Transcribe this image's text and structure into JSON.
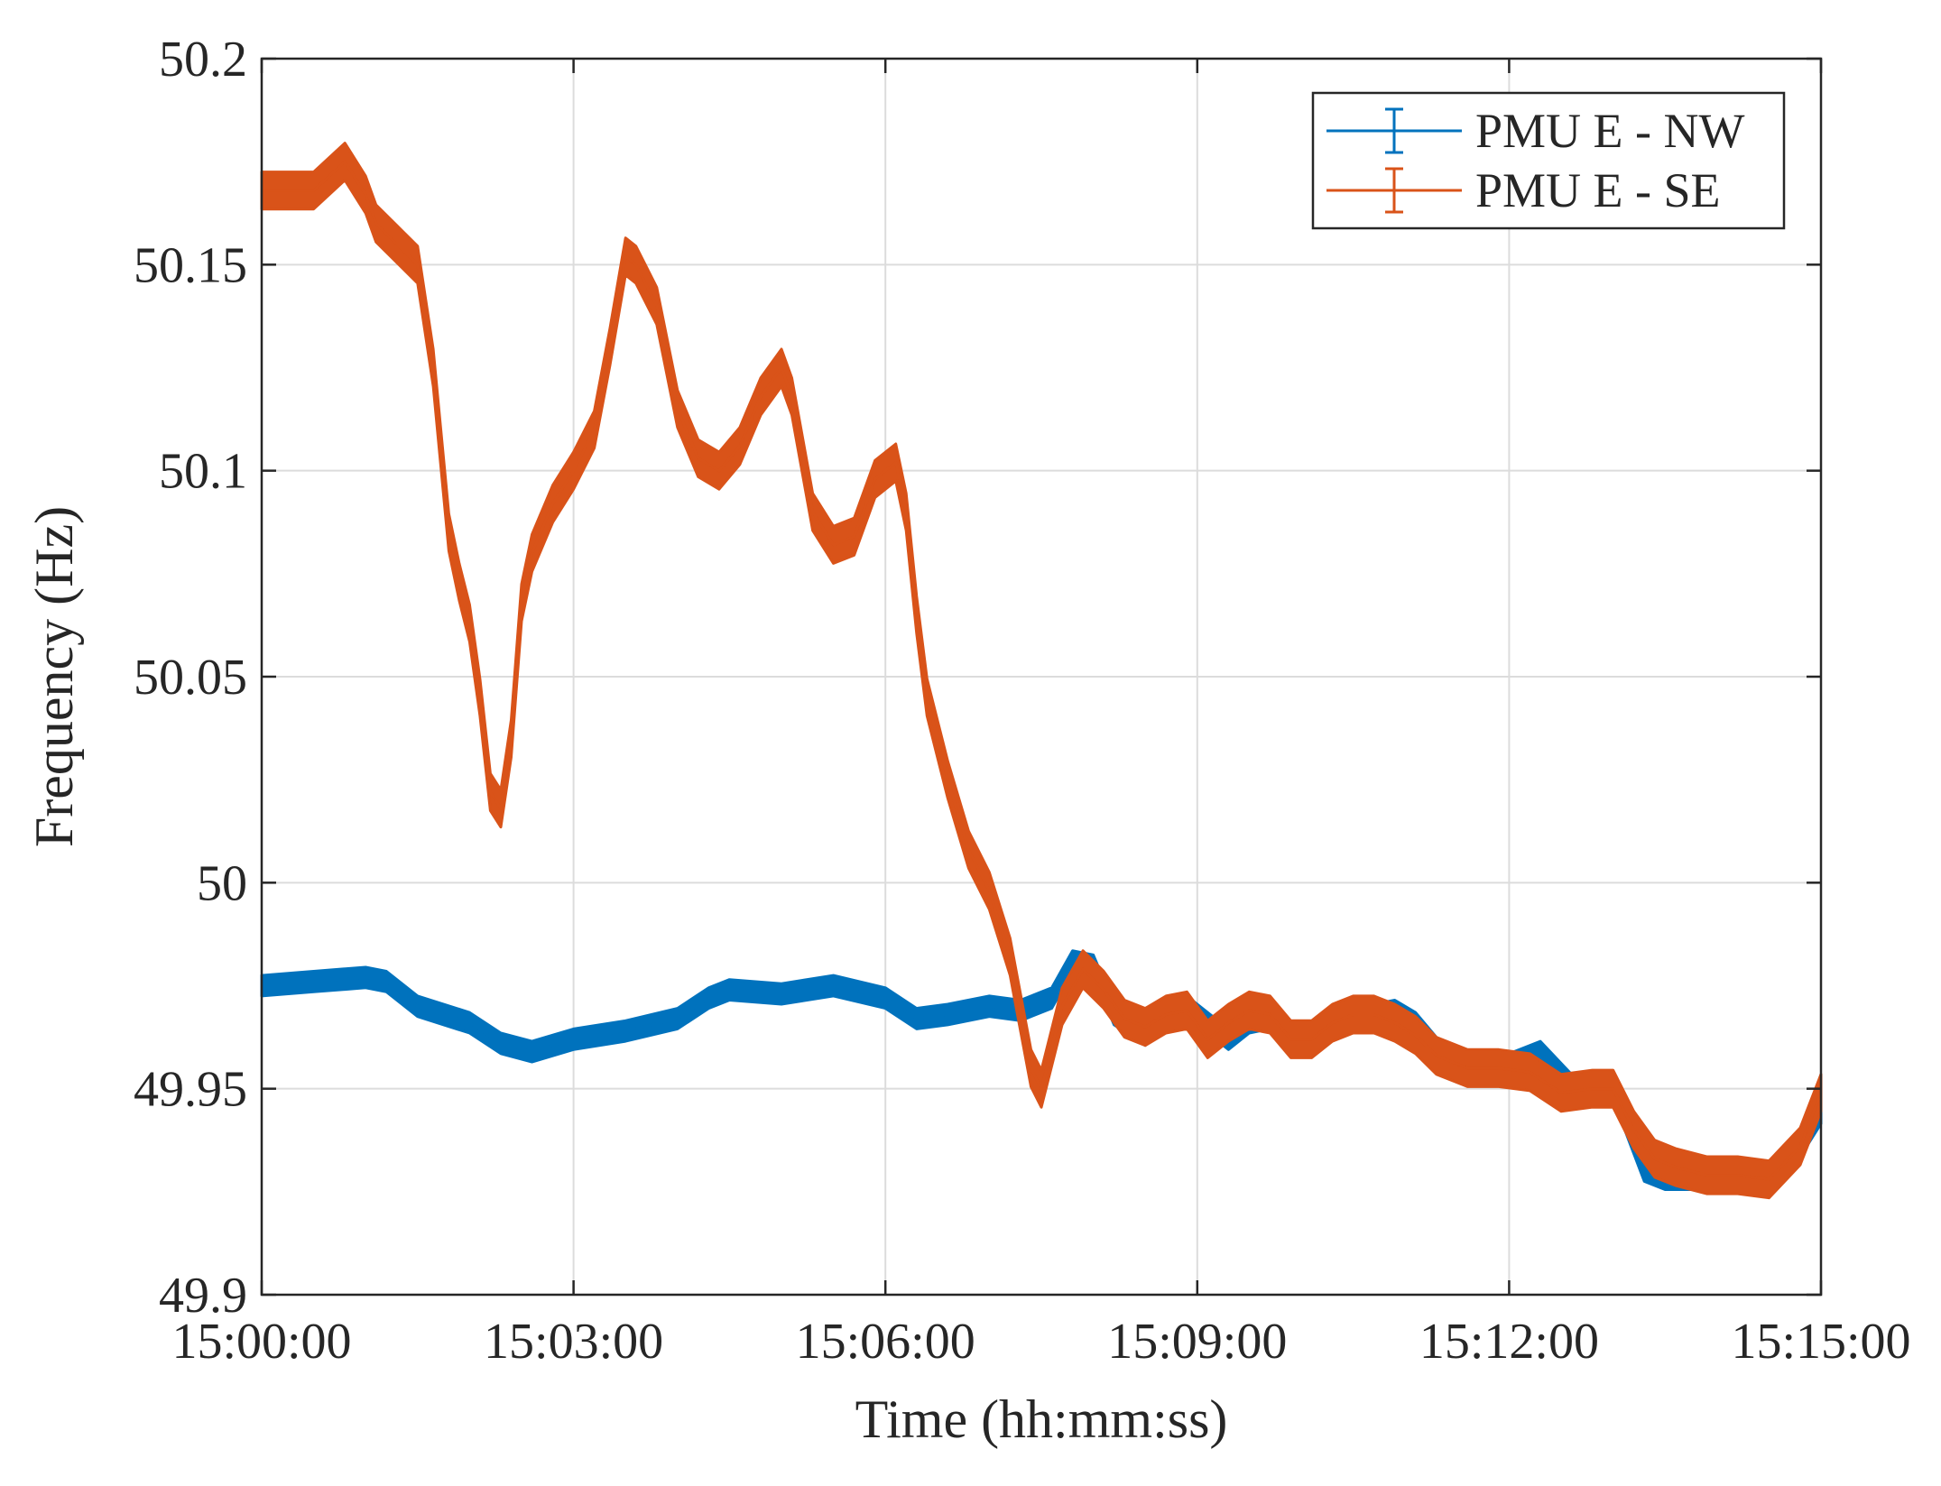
{
  "chart_data": {
    "type": "line",
    "title": "",
    "xlabel": "Time (hh:mm:ss)",
    "ylabel": "Frequency (Hz)",
    "xlim": [
      0,
      15
    ],
    "ylim": [
      49.9,
      50.2
    ],
    "grid": true,
    "legend_position": "top-right",
    "x_unit": "minutes after 15:00:00",
    "x_ticks": [
      0,
      3,
      6,
      9,
      12,
      15
    ],
    "x_tick_labels": [
      "15:00:00",
      "15:03:00",
      "15:06:00",
      "15:09:00",
      "15:12:00",
      "15:15:00"
    ],
    "y_ticks": [
      49.9,
      49.95,
      50.0,
      50.05,
      50.1,
      50.15,
      50.2
    ],
    "y_tick_labels": [
      "49.9",
      "49.95",
      "50",
      "50.05",
      "50.1",
      "50.15",
      "50.2"
    ],
    "series": [
      {
        "name": "PMU E - NW",
        "color": "#0072BD",
        "error_band_hz": 0.0025,
        "x": [
          0,
          0.5,
          1.0,
          1.2,
          1.5,
          2.0,
          2.3,
          2.6,
          3.0,
          3.5,
          4.0,
          4.3,
          4.5,
          5.0,
          5.5,
          6.0,
          6.3,
          6.6,
          7.0,
          7.3,
          7.6,
          7.8,
          8.0,
          8.2,
          8.5,
          8.7,
          8.9,
          9.1,
          9.3,
          9.5,
          9.7,
          9.9,
          10.1,
          10.4,
          10.7,
          10.9,
          11.1,
          11.4,
          11.7,
          12.0,
          12.3,
          12.6,
          12.8,
          13.0,
          13.3,
          13.5,
          13.8,
          14.1,
          14.4,
          14.7,
          15.0
        ],
        "y": [
          49.975,
          49.976,
          49.977,
          49.976,
          49.97,
          49.966,
          49.961,
          49.959,
          49.962,
          49.964,
          49.967,
          49.972,
          49.974,
          49.973,
          49.975,
          49.972,
          49.967,
          49.968,
          49.97,
          49.969,
          49.972,
          49.981,
          49.98,
          49.968,
          49.963,
          49.968,
          49.97,
          49.966,
          49.962,
          49.966,
          49.967,
          49.962,
          49.962,
          49.966,
          49.968,
          49.969,
          49.966,
          49.957,
          49.956,
          49.956,
          49.959,
          49.951,
          49.95,
          49.95,
          49.93,
          49.928,
          49.928,
          49.928,
          49.928,
          49.932,
          49.944
        ]
      },
      {
        "name": "PMU E - SE",
        "color": "#D95319",
        "error_band_hz": 0.0045,
        "x": [
          0,
          0.5,
          0.8,
          1.0,
          1.1,
          1.3,
          1.5,
          1.65,
          1.8,
          1.9,
          2.0,
          2.1,
          2.2,
          2.3,
          2.4,
          2.5,
          2.6,
          2.8,
          3.0,
          3.2,
          3.35,
          3.5,
          3.6,
          3.8,
          4.0,
          4.2,
          4.4,
          4.6,
          4.8,
          5.0,
          5.1,
          5.3,
          5.5,
          5.7,
          5.9,
          6.1,
          6.2,
          6.3,
          6.4,
          6.6,
          6.8,
          7.0,
          7.2,
          7.4,
          7.5,
          7.7,
          7.9,
          8.1,
          8.3,
          8.5,
          8.7,
          8.9,
          9.1,
          9.3,
          9.5,
          9.7,
          9.9,
          10.1,
          10.3,
          10.5,
          10.7,
          10.9,
          11.1,
          11.3,
          11.6,
          11.9,
          12.2,
          12.5,
          12.8,
          13.0,
          13.2,
          13.4,
          13.6,
          13.9,
          14.2,
          14.5,
          14.8,
          15.0
        ],
        "y": [
          50.168,
          50.168,
          50.175,
          50.167,
          50.16,
          50.155,
          50.15,
          50.125,
          50.085,
          50.073,
          50.063,
          50.045,
          50.022,
          50.018,
          50.035,
          50.068,
          50.08,
          50.092,
          50.1,
          50.11,
          50.13,
          50.152,
          50.15,
          50.14,
          50.115,
          50.103,
          50.1,
          50.106,
          50.118,
          50.125,
          50.118,
          50.09,
          50.082,
          50.084,
          50.098,
          50.102,
          50.09,
          50.065,
          50.045,
          50.025,
          50.008,
          49.998,
          49.982,
          49.955,
          49.95,
          49.97,
          49.979,
          49.974,
          49.967,
          49.965,
          49.968,
          49.969,
          49.962,
          49.966,
          49.969,
          49.968,
          49.962,
          49.962,
          49.966,
          49.968,
          49.968,
          49.966,
          49.963,
          49.958,
          49.955,
          49.955,
          49.954,
          49.949,
          49.95,
          49.95,
          49.94,
          49.933,
          49.931,
          49.929,
          49.929,
          49.928,
          49.936,
          49.949
        ]
      }
    ]
  }
}
